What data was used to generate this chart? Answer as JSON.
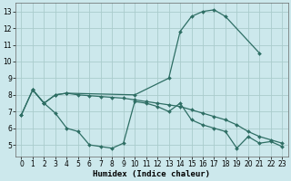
{
  "xlabel": "Humidex (Indice chaleur)",
  "bg_color": "#cce8ec",
  "grid_color": "#aacccc",
  "line_color": "#2e6e64",
  "line1_x": [
    0,
    1,
    2,
    3,
    4,
    10,
    13,
    14,
    15,
    16,
    17,
    18,
    21
  ],
  "line1_y": [
    6.8,
    8.3,
    7.5,
    8.0,
    8.1,
    8.0,
    9.0,
    11.8,
    12.7,
    13.0,
    13.1,
    12.7,
    10.5
  ],
  "line2_x": [
    0,
    1,
    2,
    3,
    4,
    5,
    6,
    7,
    8,
    9,
    10,
    11,
    12,
    13,
    14,
    15,
    16,
    17,
    18,
    19,
    20,
    21,
    22,
    23
  ],
  "line2_y": [
    6.8,
    8.3,
    7.5,
    6.9,
    6.0,
    5.8,
    5.0,
    4.9,
    4.8,
    5.1,
    7.6,
    7.5,
    7.3,
    7.0,
    7.5,
    6.5,
    6.2,
    6.0,
    5.8,
    4.8,
    5.5,
    5.1,
    5.2,
    4.9
  ],
  "line3_x": [
    1,
    2,
    3,
    4,
    5,
    6,
    7,
    8,
    9,
    10,
    11,
    12,
    13,
    14,
    15,
    16,
    17,
    18,
    19,
    20,
    21,
    22,
    23
  ],
  "line3_y": [
    8.3,
    7.5,
    8.0,
    8.1,
    8.0,
    7.95,
    7.9,
    7.85,
    7.8,
    7.7,
    7.6,
    7.5,
    7.4,
    7.3,
    7.1,
    6.9,
    6.7,
    6.5,
    6.2,
    5.8,
    5.5,
    5.3,
    5.1
  ],
  "xlim": [
    -0.5,
    23.5
  ],
  "ylim": [
    4.3,
    13.5
  ],
  "yticks": [
    5,
    6,
    7,
    8,
    9,
    10,
    11,
    12,
    13
  ],
  "xticks": [
    0,
    1,
    2,
    3,
    4,
    5,
    6,
    7,
    8,
    9,
    10,
    11,
    12,
    13,
    14,
    15,
    16,
    17,
    18,
    19,
    20,
    21,
    22,
    23
  ]
}
